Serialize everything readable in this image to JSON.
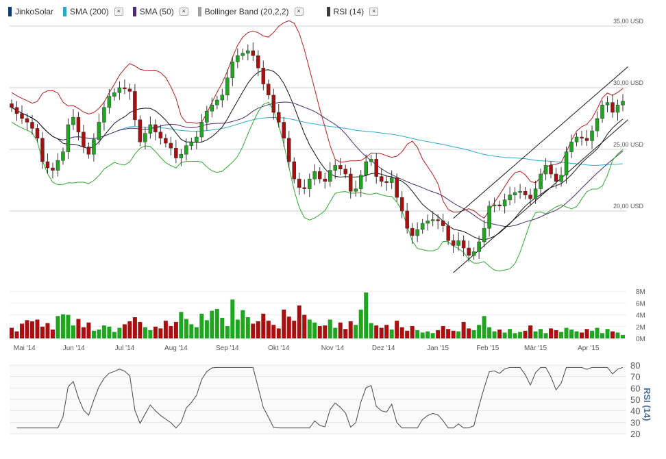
{
  "legend": [
    {
      "label": "JinkoSolar",
      "color": "#0b3b78",
      "closable": false
    },
    {
      "label": "SMA (200)",
      "color": "#2aa8cc",
      "closable": true
    },
    {
      "label": "SMA (50)",
      "color": "#4a2a70",
      "closable": true
    },
    {
      "label": "Bollinger Band (20,2,2)",
      "color": "#a0a0a0",
      "closable": true
    },
    {
      "label": "RSI (14)",
      "color": "#3c3c3c",
      "closable": true
    }
  ],
  "close_glyph": "×",
  "colors": {
    "up": "#1fa51f",
    "down": "#a80f0f",
    "bb_upper": "#b01e1e",
    "bb_lower": "#2fa82f",
    "bb_mid": "#111111",
    "sma200": "#2aa8cc",
    "sma50": "#4a2a70",
    "rsi": "#444444",
    "channel": "#111111"
  },
  "chart_data": {
    "type": "candlestick",
    "title": "JinkoSolar",
    "price_axis": {
      "ticks": [
        {
          "v": 20,
          "label": "20,00 USD"
        },
        {
          "v": 25,
          "label": "25,00 USD"
        },
        {
          "v": 30,
          "label": "30,00 USD"
        },
        {
          "v": 35,
          "label": "35,00 USD"
        }
      ],
      "range": [
        14.5,
        35
      ]
    },
    "close": [
      28.4,
      27.9,
      27.5,
      27.2,
      26.7,
      25.9,
      24.0,
      23.5,
      23.3,
      24.1,
      24.8,
      27.0,
      27.6,
      26.4,
      25.2,
      24.6,
      25.8,
      27.2,
      28.4,
      29.3,
      29.6,
      30.0,
      29.9,
      29.7,
      27.4,
      25.6,
      26.3,
      27.0,
      26.4,
      25.9,
      25.5,
      25.1,
      24.3,
      24.6,
      25.3,
      25.6,
      26.0,
      27.2,
      28.1,
      28.6,
      29.0,
      29.4,
      30.8,
      32.1,
      32.6,
      32.8,
      33.0,
      32.6,
      31.6,
      30.3,
      29.4,
      28.0,
      27.2,
      25.9,
      24.0,
      22.6,
      21.9,
      21.8,
      22.6,
      23.2,
      22.6,
      22.4,
      23.3,
      23.7,
      23.4,
      23.0,
      21.6,
      21.8,
      22.9,
      24.0,
      24.2,
      22.8,
      22.4,
      22.3,
      22.7,
      21.1,
      20.0,
      18.6,
      18.0,
      18.5,
      19.0,
      19.2,
      19.3,
      19.2,
      18.8,
      17.6,
      17.2,
      17.6,
      17.0,
      16.4,
      16.7,
      17.5,
      18.6,
      20.4,
      20.5,
      20.4,
      20.9,
      21.3,
      21.5,
      21.6,
      21.3,
      21.0,
      21.8,
      23.0,
      23.7,
      23.0,
      22.4,
      22.9,
      24.8,
      25.6,
      26.0,
      25.9,
      25.7,
      26.5,
      27.5,
      28.6,
      28.8,
      28.0,
      28.6,
      28.9
    ],
    "volume_m": [
      1.8,
      1.2,
      2.5,
      3.1,
      2.9,
      3.2,
      2.0,
      2.6,
      1.5,
      3.8,
      4.1,
      4.0,
      2.2,
      3.3,
      1.9,
      2.7,
      1.3,
      1.5,
      2.2,
      2.0,
      1.1,
      1.8,
      2.4,
      2.9,
      3.6,
      2.8,
      1.9,
      1.4,
      2.0,
      1.7,
      3.0,
      2.1,
      2.8,
      4.5,
      3.3,
      2.4,
      1.9,
      4.2,
      3.1,
      4.7,
      5.0,
      3.5,
      2.1,
      6.6,
      3.2,
      4.8,
      3.6,
      2.5,
      2.9,
      4.2,
      3.0,
      2.3,
      1.7,
      4.9,
      3.7,
      3.0,
      5.6,
      4.0,
      3.2,
      2.7,
      2.1,
      2.2,
      3.2,
      1.8,
      2.7,
      1.6,
      2.9,
      2.3,
      4.9,
      7.8,
      2.6,
      2.2,
      1.8,
      2.3,
      1.5,
      3.0,
      1.9,
      1.3,
      2.1,
      1.4,
      1.0,
      1.2,
      0.9,
      1.4,
      2.1,
      1.6,
      1.3,
      1.2,
      2.8,
      1.7,
      1.4,
      2.3,
      3.8,
      1.9,
      1.2,
      1.5,
      1.0,
      1.6,
      0.9,
      1.1,
      1.3,
      2.2,
      1.2,
      1.6,
      0.9,
      1.7,
      1.4,
      1.1,
      1.8,
      1.5,
      1.2,
      1.0,
      1.6,
      1.3,
      1.8,
      0.9,
      1.6,
      1.2,
      1.0,
      0.6
    ],
    "volume_axis": {
      "ticks": [
        {
          "v": 0,
          "label": "0M"
        },
        {
          "v": 2,
          "label": "2M"
        },
        {
          "v": 4,
          "label": "4M"
        },
        {
          "v": 6,
          "label": "6M"
        },
        {
          "v": 8,
          "label": "8M"
        }
      ],
      "range": [
        0,
        8.2
      ]
    },
    "rsi_axis": {
      "label": "RSI (14)",
      "ticks": [
        {
          "v": 20,
          "label": "20"
        },
        {
          "v": 30,
          "label": "30"
        },
        {
          "v": 40,
          "label": "40"
        },
        {
          "v": 50,
          "label": "50"
        },
        {
          "v": 60,
          "label": "60"
        },
        {
          "v": 70,
          "label": "70"
        },
        {
          "v": 80,
          "label": "80"
        }
      ],
      "range": [
        20,
        80
      ]
    },
    "x_labels": [
      {
        "label": "Mai '14",
        "index": 2.5
      },
      {
        "label": "Jun '14",
        "index": 12.1
      },
      {
        "label": "Jul '14",
        "index": 22
      },
      {
        "label": "Aug '14",
        "index": 32
      },
      {
        "label": "Sep '14",
        "index": 42
      },
      {
        "label": "Okt '14",
        "index": 52
      },
      {
        "label": "Nov '14",
        "index": 62.5
      },
      {
        "label": "Dez '14",
        "index": 72.4
      },
      {
        "label": "Jan '15",
        "index": 83
      },
      {
        "label": "Feb '15",
        "index": 92.7
      },
      {
        "label": "Mär '15",
        "index": 102
      },
      {
        "label": "Apr '15",
        "index": 112.3
      }
    ],
    "trendlines": [
      {
        "from": [
          86,
          19.4
        ],
        "to": [
          120,
          31.7
        ]
      },
      {
        "from": [
          86,
          15.0
        ],
        "to": [
          120,
          27.4
        ]
      }
    ],
    "indicators": [
      "SMA (200)",
      "SMA (50)",
      "Bollinger Band (20,2,2)",
      "RSI (14)"
    ]
  }
}
